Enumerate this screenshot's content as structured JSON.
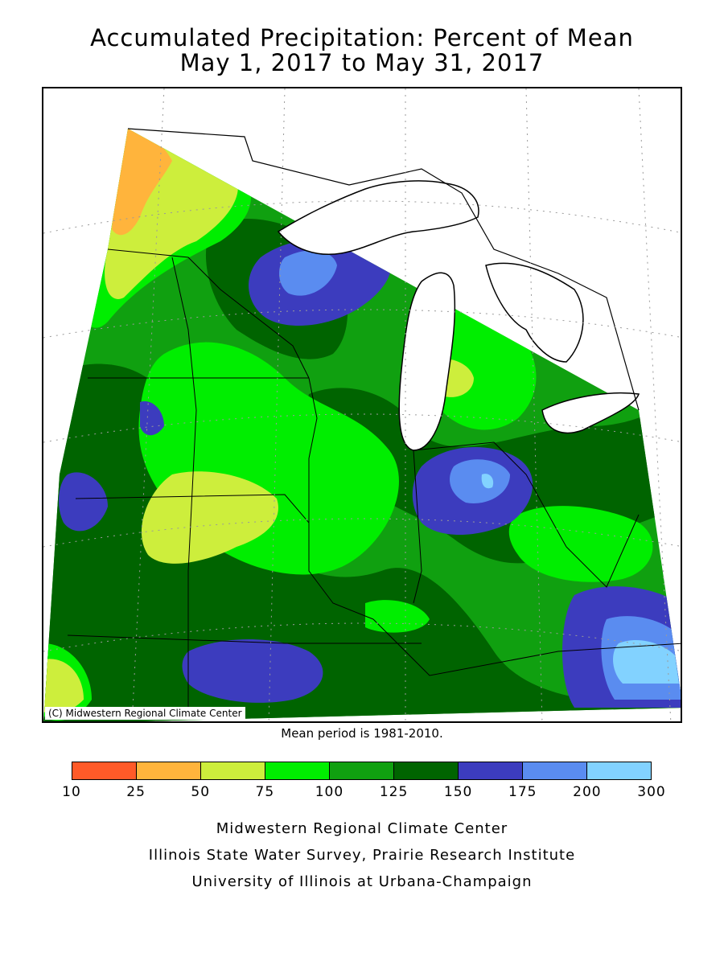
{
  "title_line1": "Accumulated Precipitation: Percent of Mean",
  "title_line2": "May 1, 2017 to May 31, 2017",
  "copyright": "(C) Midwestern Regional Climate Center",
  "mean_period": "Mean period is 1981-2010.",
  "legend": {
    "ticks": [
      "10",
      "25",
      "50",
      "75",
      "100",
      "125",
      "150",
      "175",
      "200",
      "300"
    ],
    "colors": [
      "#ff5a28",
      "#ffb43c",
      "#cdee3c",
      "#00ee00",
      "#10a010",
      "#006400",
      "#3c3cbe",
      "#5a8cf0",
      "#82d2ff"
    ]
  },
  "credits": [
    "Midwestern Regional Climate Center",
    "Illinois State Water Survey, Prairie Research Institute",
    "University of Illinois at Urbana-Champaign"
  ]
}
